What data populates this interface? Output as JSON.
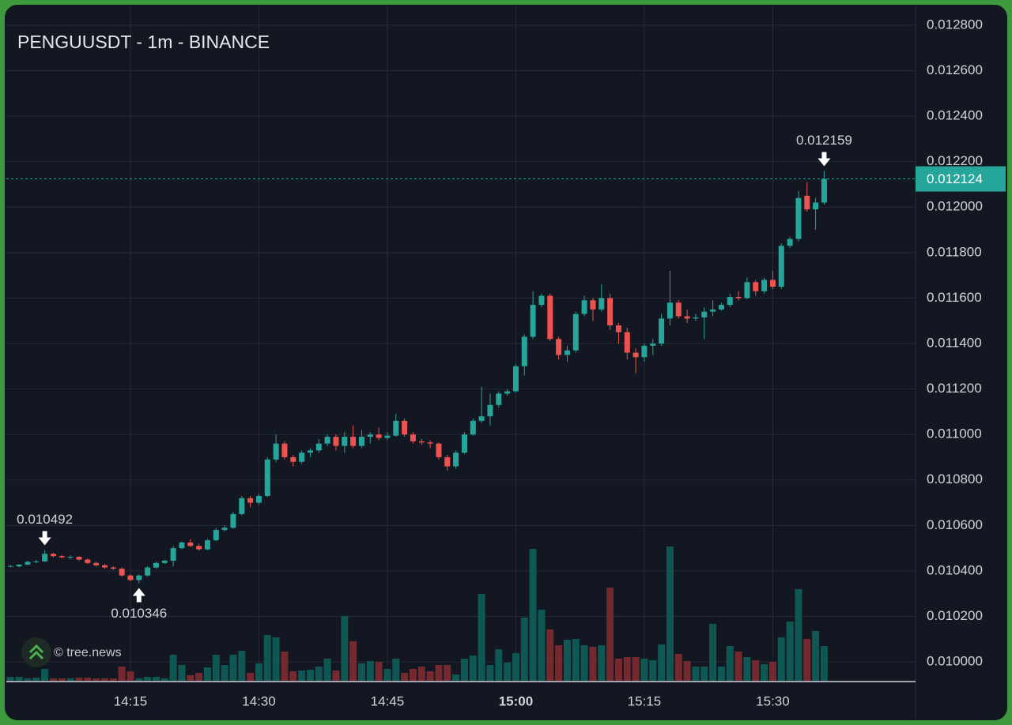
{
  "chart_data": {
    "type": "candlestick",
    "title": "PENGUUSDT - 1m - BINANCE",
    "watermark": "© tree.news",
    "up_color": "#26a69a",
    "down_color": "#ef5350",
    "volume_up_color": "#0f5753",
    "volume_down_color": "#73292d",
    "grid": true,
    "ylim": [
      0.009917,
      0.012883
    ],
    "yticks": [
      {
        "value": 0.01,
        "label": "0.010000"
      },
      {
        "value": 0.0102,
        "label": "0.010200"
      },
      {
        "value": 0.0104,
        "label": "0.010400"
      },
      {
        "value": 0.0106,
        "label": "0.010600"
      },
      {
        "value": 0.0108,
        "label": "0.010800"
      },
      {
        "value": 0.011,
        "label": "0.011000"
      },
      {
        "value": 0.0112,
        "label": "0.011200"
      },
      {
        "value": 0.0114,
        "label": "0.011400"
      },
      {
        "value": 0.0116,
        "label": "0.011600"
      },
      {
        "value": 0.0118,
        "label": "0.011800"
      },
      {
        "value": 0.012,
        "label": "0.012000"
      },
      {
        "value": 0.0122,
        "label": "0.012200"
      },
      {
        "value": 0.0124,
        "label": "0.012400"
      },
      {
        "value": 0.0126,
        "label": "0.012600"
      },
      {
        "value": 0.0128,
        "label": "0.012800"
      }
    ],
    "xticks": [
      "14:15",
      "14:30",
      "14:45",
      "15:00",
      "15:15",
      "15:30"
    ],
    "vlim": [
      0,
      170
    ],
    "last_price": {
      "value": 0.012124,
      "label": "0.012124"
    },
    "annotations": [
      {
        "x": "14:05",
        "value": 0.010492,
        "label": "0.010492",
        "position": "above"
      },
      {
        "x": "14:16",
        "value": 0.010346,
        "label": "0.010346",
        "position": "below"
      },
      {
        "x": "15:36",
        "value": 0.012159,
        "label": "0.012159",
        "position": "above"
      }
    ],
    "x": [
      "14:01",
      "14:02",
      "14:03",
      "14:04",
      "14:05",
      "14:06",
      "14:07",
      "14:08",
      "14:09",
      "14:10",
      "14:11",
      "14:12",
      "14:13",
      "14:14",
      "14:15",
      "14:16",
      "14:17",
      "14:18",
      "14:19",
      "14:20",
      "14:21",
      "14:22",
      "14:23",
      "14:24",
      "14:25",
      "14:26",
      "14:27",
      "14:28",
      "14:29",
      "14:30",
      "14:31",
      "14:32",
      "14:33",
      "14:34",
      "14:35",
      "14:36",
      "14:37",
      "14:38",
      "14:39",
      "14:40",
      "14:41",
      "14:42",
      "14:43",
      "14:44",
      "14:45",
      "14:46",
      "14:47",
      "14:48",
      "14:49",
      "14:50",
      "14:51",
      "14:52",
      "14:53",
      "14:54",
      "14:55",
      "14:56",
      "14:57",
      "14:58",
      "14:59",
      "15:00",
      "15:01",
      "15:02",
      "15:03",
      "15:04",
      "15:05",
      "15:06",
      "15:07",
      "15:08",
      "15:09",
      "15:10",
      "15:11",
      "15:12",
      "15:13",
      "15:14",
      "15:15",
      "15:16",
      "15:17",
      "15:18",
      "15:19",
      "15:20",
      "15:21",
      "15:22",
      "15:23",
      "15:24",
      "15:25",
      "15:26",
      "15:27",
      "15:28",
      "15:29",
      "15:30",
      "15:31",
      "15:32",
      "15:33",
      "15:34",
      "15:35",
      "15:36"
    ],
    "open": [
      0.01042,
      0.01042,
      0.010428,
      0.01044,
      0.010442,
      0.010475,
      0.010465,
      0.01046,
      0.010462,
      0.01045,
      0.010435,
      0.010425,
      0.010415,
      0.01041,
      0.01038,
      0.01036,
      0.01038,
      0.010415,
      0.010435,
      0.010445,
      0.0105,
      0.010525,
      0.01051,
      0.010495,
      0.010535,
      0.01058,
      0.01059,
      0.01065,
      0.01072,
      0.0107,
      0.01073,
      0.01089,
      0.01096,
      0.0109,
      0.01088,
      0.01092,
      0.01093,
      0.01096,
      0.01099,
      0.01095,
      0.01099,
      0.01095,
      0.01099,
      0.011,
      0.010985,
      0.010995,
      0.01106,
      0.011,
      0.01097,
      0.010965,
      0.01096,
      0.0109,
      0.01086,
      0.01092,
      0.011,
      0.01106,
      0.01108,
      0.01113,
      0.01118,
      0.01119,
      0.0113,
      0.01143,
      0.01157,
      0.01161,
      0.01142,
      0.01135,
      0.01137,
      0.01153,
      0.01159,
      0.01155,
      0.0116,
      0.01148,
      0.01145,
      0.01136,
      0.01134,
      0.01139,
      0.0114,
      0.01151,
      0.01158,
      0.01152,
      0.01151,
      0.011515,
      0.01154,
      0.01155,
      0.01157,
      0.011605,
      0.0116,
      0.01167,
      0.01163,
      0.01168,
      0.01165,
      0.01183,
      0.01186,
      0.01205,
      0.01199,
      0.01202
    ],
    "high": [
      0.010425,
      0.01043,
      0.010445,
      0.010448,
      0.010492,
      0.01048,
      0.01047,
      0.010468,
      0.010465,
      0.010455,
      0.01044,
      0.01043,
      0.01042,
      0.010415,
      0.010385,
      0.010385,
      0.01042,
      0.01044,
      0.01045,
      0.01051,
      0.01053,
      0.01054,
      0.01052,
      0.01054,
      0.01059,
      0.0106,
      0.01066,
      0.01073,
      0.01073,
      0.01074,
      0.0109,
      0.011,
      0.01097,
      0.01091,
      0.01093,
      0.01094,
      0.01098,
      0.011,
      0.011,
      0.01101,
      0.01104,
      0.01102,
      0.01101,
      0.01103,
      0.01101,
      0.01109,
      0.01107,
      0.01101,
      0.01098,
      0.010975,
      0.010965,
      0.01091,
      0.01093,
      0.01101,
      0.01107,
      0.01121,
      0.01118,
      0.01119,
      0.0112,
      0.01131,
      0.01144,
      0.01163,
      0.01162,
      0.01162,
      0.01143,
      0.01139,
      0.01154,
      0.01161,
      0.0116,
      0.01166,
      0.01162,
      0.01149,
      0.01147,
      0.01138,
      0.0114,
      0.01142,
      0.01153,
      0.01172,
      0.01159,
      0.01155,
      0.01153,
      0.01156,
      0.01159,
      0.01158,
      0.01162,
      0.01163,
      0.01169,
      0.01168,
      0.01169,
      0.01172,
      0.01184,
      0.01187,
      0.01207,
      0.01211,
      0.01204,
      0.012159
    ],
    "low": [
      0.010415,
      0.010415,
      0.010425,
      0.010435,
      0.01044,
      0.01046,
      0.010455,
      0.010452,
      0.010445,
      0.01043,
      0.01042,
      0.01041,
      0.010405,
      0.010375,
      0.010355,
      0.010346,
      0.010375,
      0.01041,
      0.01043,
      0.01042,
      0.010495,
      0.010505,
      0.01049,
      0.01049,
      0.01053,
      0.010575,
      0.010585,
      0.010645,
      0.01068,
      0.01069,
      0.010725,
      0.01088,
      0.01089,
      0.01086,
      0.01087,
      0.0109,
      0.01092,
      0.01095,
      0.01093,
      0.01092,
      0.01094,
      0.01094,
      0.01096,
      0.010975,
      0.010975,
      0.01099,
      0.01099,
      0.01096,
      0.010955,
      0.01094,
      0.01089,
      0.01084,
      0.01085,
      0.010915,
      0.010995,
      0.01105,
      0.01104,
      0.01112,
      0.01117,
      0.011185,
      0.01126,
      0.01142,
      0.01156,
      0.01141,
      0.01133,
      0.01132,
      0.01136,
      0.01152,
      0.0115,
      0.01154,
      0.01146,
      0.0114,
      0.01133,
      0.01127,
      0.01132,
      0.01135,
      0.01139,
      0.01148,
      0.01151,
      0.01149,
      0.0115,
      0.01142,
      0.01152,
      0.011545,
      0.01156,
      0.01159,
      0.011595,
      0.01161,
      0.01162,
      0.01164,
      0.01164,
      0.01182,
      0.01185,
      0.01198,
      0.0119,
      0.01201
    ],
    "close": [
      0.010422,
      0.010428,
      0.01044,
      0.010442,
      0.010475,
      0.010465,
      0.01046,
      0.010462,
      0.01045,
      0.010435,
      0.010425,
      0.010415,
      0.01041,
      0.01038,
      0.01036,
      0.01038,
      0.010415,
      0.010435,
      0.010445,
      0.0105,
      0.010525,
      0.01051,
      0.010495,
      0.010535,
      0.01058,
      0.01059,
      0.01065,
      0.01072,
      0.0107,
      0.01073,
      0.01089,
      0.01096,
      0.0109,
      0.01088,
      0.01092,
      0.01093,
      0.01096,
      0.01099,
      0.01095,
      0.01099,
      0.01095,
      0.01099,
      0.011,
      0.010985,
      0.010995,
      0.01106,
      0.011,
      0.01097,
      0.010965,
      0.01096,
      0.0109,
      0.01086,
      0.01092,
      0.011,
      0.01106,
      0.01108,
      0.01113,
      0.01118,
      0.01119,
      0.0113,
      0.01143,
      0.01157,
      0.01161,
      0.01142,
      0.01135,
      0.01137,
      0.01153,
      0.01159,
      0.01155,
      0.0116,
      0.01148,
      0.01145,
      0.01136,
      0.01134,
      0.01139,
      0.0114,
      0.01151,
      0.01158,
      0.01152,
      0.01151,
      0.011515,
      0.01154,
      0.01155,
      0.01157,
      0.011605,
      0.0116,
      0.01167,
      0.01163,
      0.01168,
      0.01165,
      0.01183,
      0.01186,
      0.01204,
      0.01199,
      0.01202,
      0.012124
    ],
    "volume": [
      5,
      5,
      3,
      4,
      15,
      3,
      3,
      3,
      4,
      4,
      3,
      3,
      3,
      18,
      12,
      3,
      5,
      5,
      3,
      33,
      20,
      7,
      10,
      17,
      33,
      20,
      33,
      38,
      10,
      22,
      58,
      55,
      37,
      12,
      13,
      14,
      18,
      28,
      13,
      82,
      50,
      22,
      25,
      24,
      15,
      28,
      10,
      15,
      18,
      12,
      20,
      20,
      8,
      28,
      32,
      110,
      20,
      40,
      23,
      35,
      80,
      167,
      90,
      65,
      45,
      52,
      53,
      45,
      43,
      45,
      118,
      28,
      30,
      30,
      28,
      26,
      46,
      170,
      34,
      25,
      18,
      18,
      72,
      18,
      44,
      37,
      30,
      26,
      21,
      24,
      55,
      75,
      116,
      53,
      63,
      44
    ]
  }
}
